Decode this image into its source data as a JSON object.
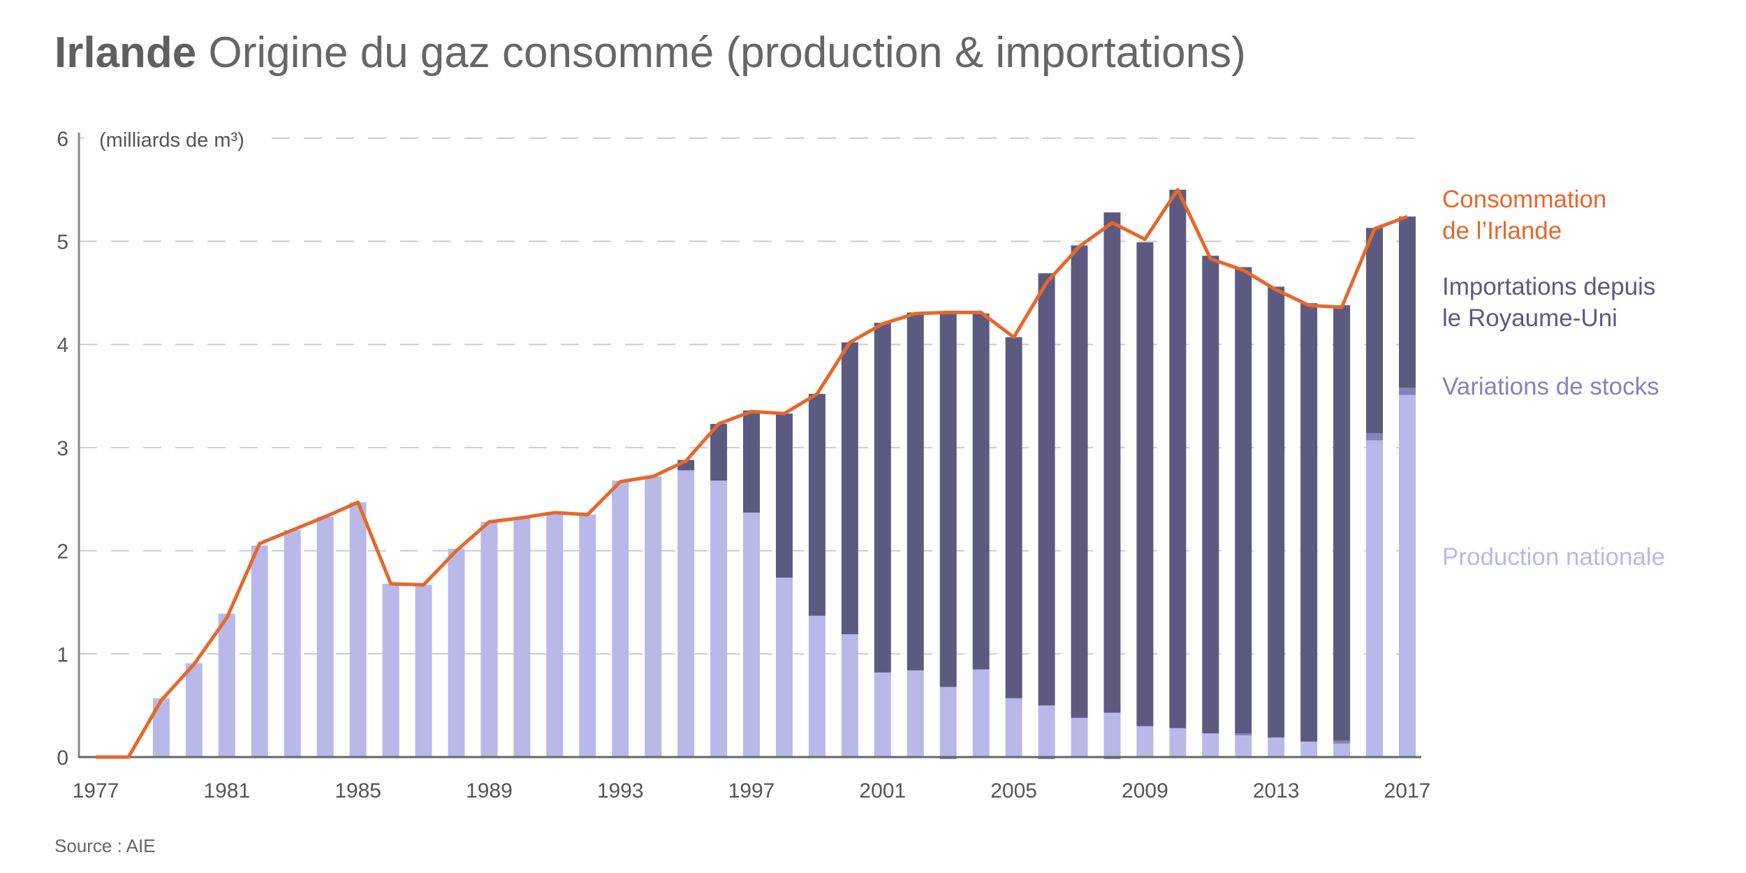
{
  "title": {
    "bold": "Irlande",
    "rest": "Origine du gaz consommé (production & importations)"
  },
  "source": "Source : AIE",
  "colors": {
    "production": "#b8b9e8",
    "imports": "#5c5a80",
    "stocks": "#8582bb",
    "consumption": "#e8672a"
  },
  "chart_data": {
    "type": "bar",
    "title": "Irlande Origine du gaz consommé (production & importations)",
    "ylabel": "(milliards de m³)",
    "unit_label": "(milliards de m³)",
    "ylim": [
      0,
      6
    ],
    "yticks": [
      "0",
      "1",
      "2",
      "3",
      "4",
      "5",
      "6"
    ],
    "xticks": [
      "1977",
      "1981",
      "1985",
      "1989",
      "1993",
      "1997",
      "2001",
      "2005",
      "2009",
      "2013",
      "2017"
    ],
    "grid": true,
    "legend_placement": "right",
    "categories": [
      1977,
      1978,
      1979,
      1980,
      1981,
      1982,
      1983,
      1984,
      1985,
      1986,
      1987,
      1988,
      1989,
      1990,
      1991,
      1992,
      1993,
      1994,
      1995,
      1996,
      1997,
      1998,
      1999,
      2000,
      2001,
      2002,
      2003,
      2004,
      2005,
      2006,
      2007,
      2008,
      2009,
      2010,
      2011,
      2012,
      2013,
      2014,
      2015,
      2016,
      2017
    ],
    "series": [
      {
        "name": "Production nationale",
        "type": "bar",
        "legend": "Production nationale",
        "values": [
          0,
          0,
          0.57,
          0.91,
          1.39,
          2.05,
          2.2,
          2.33,
          2.47,
          1.68,
          1.67,
          2.02,
          2.28,
          2.32,
          2.37,
          2.35,
          2.68,
          2.72,
          2.78,
          2.68,
          2.37,
          1.74,
          1.37,
          1.19,
          0.82,
          0.84,
          0.68,
          0.85,
          0.57,
          0.5,
          0.38,
          0.43,
          0.3,
          0.28,
          0.23,
          0.21,
          0.19,
          0.15,
          0.13,
          3.07,
          3.51
        ]
      },
      {
        "name": "Variations de stocks",
        "type": "bar",
        "legend": "Variations de stocks",
        "values": [
          0,
          0,
          0,
          0,
          0,
          0,
          0,
          0,
          0,
          0,
          0,
          0,
          0,
          0,
          0,
          0,
          0,
          0,
          0,
          0,
          0,
          0,
          0,
          0,
          0,
          0,
          -0.02,
          0,
          -0.01,
          -0.02,
          0,
          -0.02,
          0,
          -0.01,
          -0.01,
          0.02,
          -0.01,
          0,
          0.03,
          0.07,
          0.07
        ]
      },
      {
        "name": "Importations depuis le Royaume-Uni",
        "type": "bar",
        "legend": [
          "Importations depuis",
          "le Royaume-Uni"
        ],
        "values": [
          0,
          0,
          0,
          0,
          0,
          0,
          0,
          0,
          0,
          0,
          0,
          0,
          0,
          0,
          0,
          0,
          0,
          0,
          0.1,
          0.55,
          0.99,
          1.59,
          2.15,
          2.83,
          3.39,
          3.47,
          3.63,
          3.45,
          3.5,
          4.19,
          4.58,
          4.85,
          4.69,
          5.22,
          4.63,
          4.52,
          4.37,
          4.25,
          4.22,
          1.99,
          1.66
        ]
      },
      {
        "name": "Consommation de l'Irlande",
        "type": "line",
        "legend": [
          "Consommation",
          "de l’Irlande"
        ],
        "values": [
          0,
          0,
          0.55,
          0.9,
          1.35,
          2.07,
          2.2,
          2.33,
          2.47,
          1.68,
          1.67,
          2.0,
          2.28,
          2.32,
          2.37,
          2.35,
          2.67,
          2.72,
          2.87,
          3.23,
          3.35,
          3.33,
          3.52,
          4.02,
          4.2,
          4.3,
          4.31,
          4.31,
          4.07,
          4.6,
          4.95,
          5.18,
          5.02,
          5.5,
          4.83,
          4.72,
          4.53,
          4.38,
          4.36,
          5.12,
          5.24
        ]
      }
    ]
  }
}
